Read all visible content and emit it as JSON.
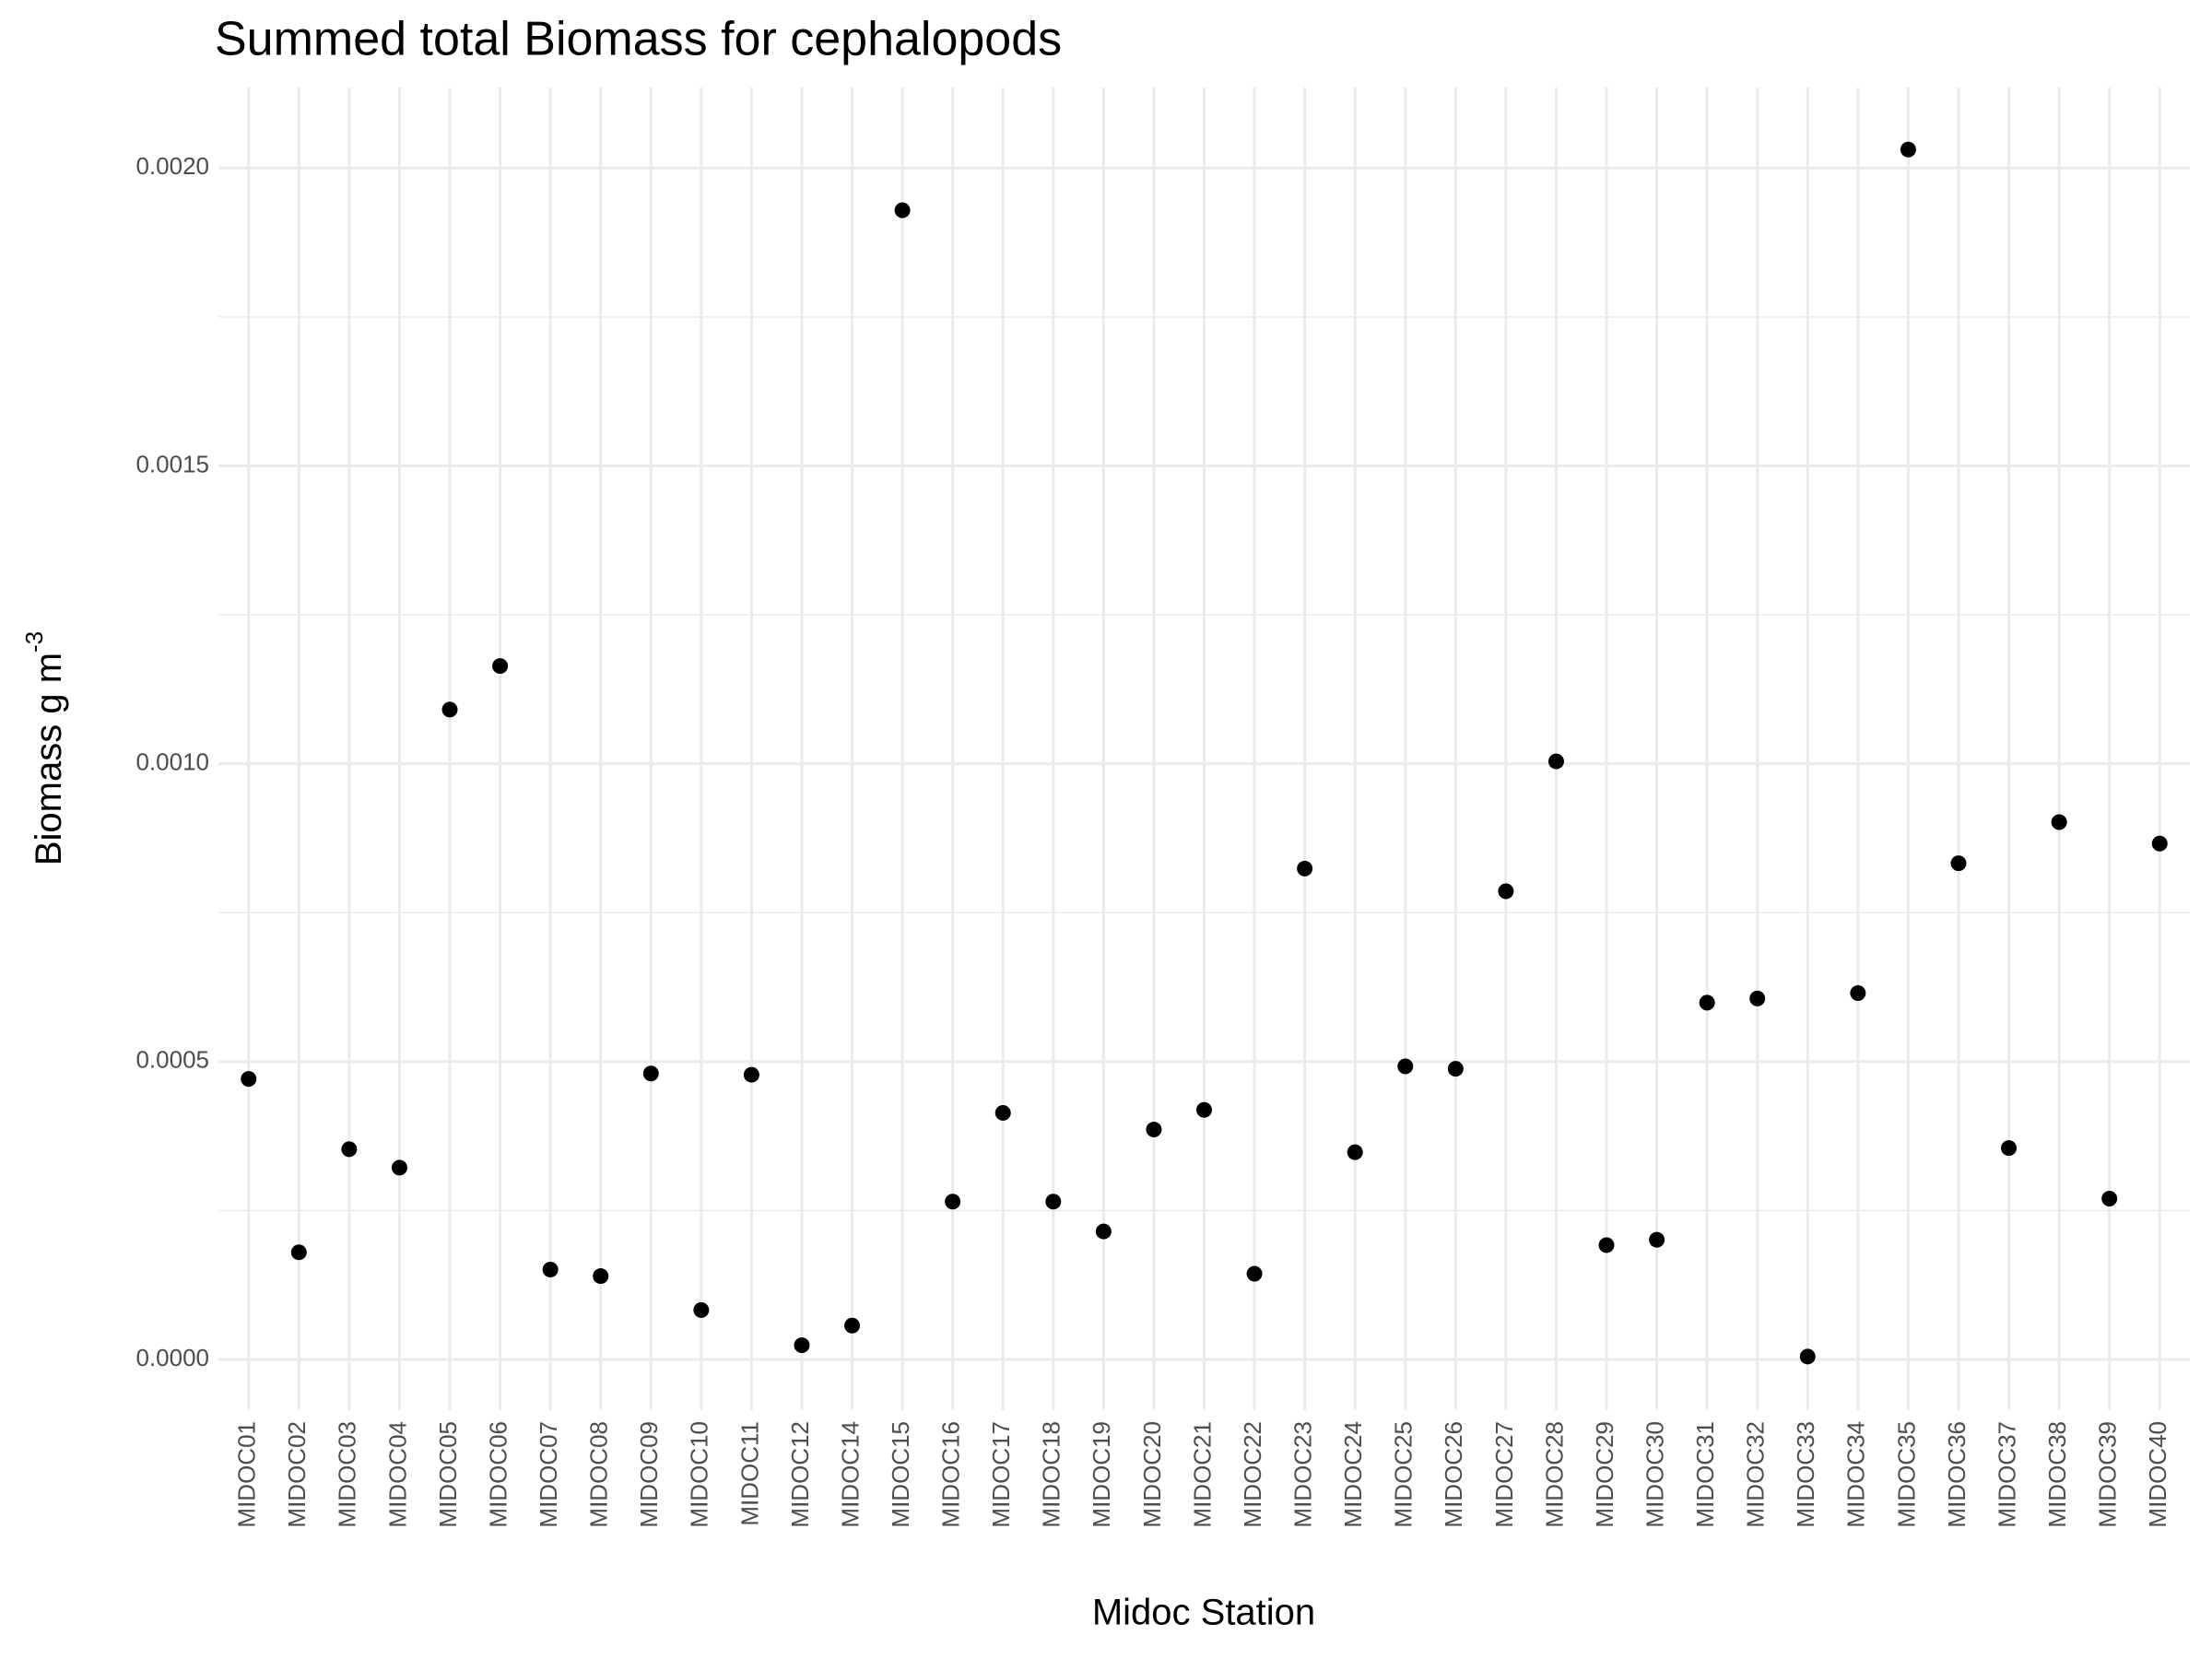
{
  "chart_data": {
    "type": "scatter",
    "title": "Summed total Biomass for cephalopods",
    "xlabel": "Midoc Station",
    "ylabel": "Biomass g m",
    "ylabel_superscript": "-3",
    "categories": [
      "MIDOC01",
      "MIDOC02",
      "MIDOC03",
      "MIDOC04",
      "MIDOC05",
      "MIDOC06",
      "MIDOC07",
      "MIDOC08",
      "MIDOC09",
      "MIDOC10",
      "MIDOC11",
      "MIDOC12",
      "MIDOC14",
      "MIDOC15",
      "MIDOC16",
      "MIDOC17",
      "MIDOC18",
      "MIDOC19",
      "MIDOC20",
      "MIDOC21",
      "MIDOC22",
      "MIDOC23",
      "MIDOC24",
      "MIDOC25",
      "MIDOC26",
      "MIDOC27",
      "MIDOC28",
      "MIDOC29",
      "MIDOC30",
      "MIDOC31",
      "MIDOC32",
      "MIDOC33",
      "MIDOC34",
      "MIDOC35",
      "MIDOC36",
      "MIDOC37",
      "MIDOC38",
      "MIDOC39",
      "MIDOC40"
    ],
    "values": [
      0.000471,
      0.00018,
      0.000353,
      0.000322,
      0.001091,
      0.001164,
      0.000151,
      0.00014,
      0.00048,
      8.3e-05,
      0.000478,
      2.4e-05,
      5.7e-05,
      0.001929,
      0.000265,
      0.000414,
      0.000265,
      0.000215,
      0.000386,
      0.000419,
      0.000144,
      0.000824,
      0.000348,
      0.000492,
      0.000488,
      0.000786,
      0.001004,
      0.000192,
      0.000201,
      0.000599,
      0.000606,
      5e-06,
      0.000615,
      0.002031,
      0.000833,
      0.000355,
      0.000902,
      0.00027,
      0.000866
    ],
    "color": "#000000",
    "ylim": [
      -8.5e-05,
      0.002135
    ],
    "yticks": [
      {
        "value": 0,
        "label": "0.0000"
      },
      {
        "value": 0.0005,
        "label": "0.0005"
      },
      {
        "value": 0.001,
        "label": "0.0010"
      },
      {
        "value": 0.0015,
        "label": "0.0015"
      },
      {
        "value": 0.002,
        "label": "0.0020"
      }
    ],
    "grid": true,
    "minor_grid": true
  }
}
